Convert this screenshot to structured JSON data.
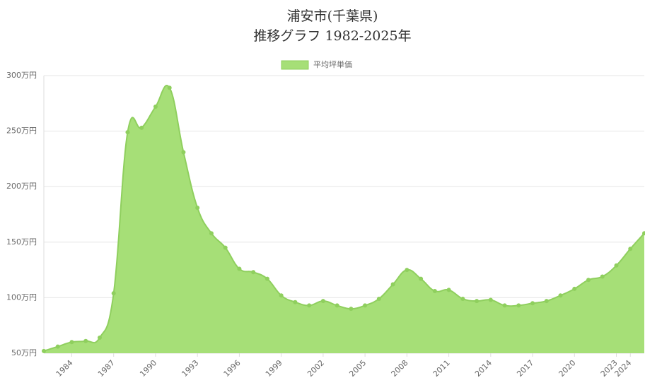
{
  "chart_data": {
    "type": "area",
    "title": [
      "浦安市(千葉県)",
      "推移グラフ 1982-2025年"
    ],
    "categories": [
      null,
      null,
      "1984",
      null,
      null,
      "1987",
      null,
      null,
      "1990",
      null,
      null,
      "1993",
      null,
      null,
      "1996",
      null,
      null,
      "1999",
      null,
      null,
      "2002",
      null,
      null,
      "2005",
      null,
      null,
      "2008",
      null,
      null,
      "2011",
      null,
      null,
      "2014",
      null,
      null,
      "2017",
      null,
      null,
      "2020",
      null,
      null,
      "2023",
      "2024",
      null
    ],
    "series": [
      {
        "name": "平均坪単価",
        "color": "#a6df77",
        "values": [
          52,
          56,
          60,
          61,
          64,
          104,
          249,
          253,
          272,
          289,
          231,
          181,
          158,
          145,
          126,
          123,
          117,
          102,
          96,
          93,
          97,
          93,
          90,
          93,
          99,
          112,
          125,
          117,
          106,
          107,
          99,
          97,
          98,
          93,
          93,
          95,
          97,
          102,
          108,
          116,
          119,
          129,
          144,
          158
        ]
      }
    ],
    "ylim": [
      50,
      300
    ],
    "yticks": [
      {
        "value": 50,
        "label": "50万円"
      },
      {
        "value": 100,
        "label": "100万円"
      },
      {
        "value": 150,
        "label": "150万円"
      },
      {
        "value": 200,
        "label": "200万円"
      },
      {
        "value": 250,
        "label": "250万円"
      },
      {
        "value": 300,
        "label": "300万円"
      }
    ],
    "grid": true,
    "legend": "top"
  }
}
